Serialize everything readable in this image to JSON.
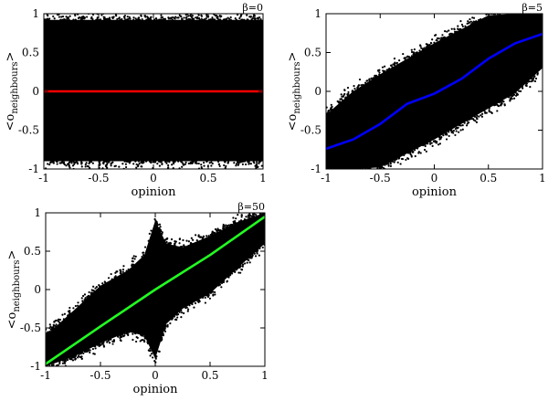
{
  "chart_data": [
    {
      "type": "scatter",
      "title": "",
      "annotation": "β=0",
      "xlabel": "opinion",
      "ylabel_main": "<o",
      "ylabel_sub": "neighbours",
      "ylabel_close": ">",
      "xlim": [
        -1,
        1
      ],
      "ylim": [
        -1,
        1
      ],
      "xticks": [
        -1,
        -0.5,
        0,
        0.5,
        1
      ],
      "yticks": [
        -1,
        -0.5,
        0,
        0.5,
        1
      ],
      "xtick_labels": [
        "-1",
        "-0.5",
        "0",
        "0.5",
        "1"
      ],
      "ytick_labels": [
        "-1",
        "-0.5",
        "0",
        "0.5",
        "1"
      ],
      "scatter_color": "#000000",
      "scatter_envelope": {
        "x": [
          -1,
          -0.5,
          0,
          0.5,
          1
        ],
        "y_low": [
          -0.9,
          -0.9,
          -0.9,
          -0.9,
          -0.9
        ],
        "y_high": [
          0.92,
          0.92,
          0.92,
          0.92,
          0.92
        ]
      },
      "series": [
        {
          "color": "#ff0000",
          "x": [
            -1,
            -0.5,
            0,
            0.5,
            1
          ],
          "y": [
            0,
            0,
            0,
            0,
            0
          ]
        }
      ]
    },
    {
      "type": "scatter",
      "title": "",
      "annotation": "β=5",
      "xlabel": "opinion",
      "ylabel_main": "<o",
      "ylabel_sub": "neighbours",
      "ylabel_close": ">",
      "xlim": [
        -1,
        1
      ],
      "ylim": [
        -1,
        1
      ],
      "xticks": [
        -1,
        -0.5,
        0,
        0.5,
        1
      ],
      "yticks": [
        -1,
        -0.5,
        0,
        0.5,
        1
      ],
      "xtick_labels": [
        "-1",
        "-0.5",
        "0",
        "0.5",
        "1"
      ],
      "ytick_labels": [
        "-1",
        "-0.5",
        "0",
        "0.5",
        "1"
      ],
      "scatter_color": "#000000",
      "scatter_envelope": {
        "x": [
          -1,
          -0.75,
          -0.5,
          -0.25,
          0,
          0.25,
          0.5,
          0.75,
          1
        ],
        "y_low": [
          -1,
          -1,
          -0.98,
          -0.8,
          -0.62,
          -0.42,
          -0.22,
          -0.02,
          0.3
        ],
        "y_high": [
          -0.3,
          0,
          0.22,
          0.42,
          0.62,
          0.8,
          0.98,
          1,
          1
        ]
      },
      "series": [
        {
          "color": "#0000ff",
          "x": [
            -1,
            -0.75,
            -0.5,
            -0.25,
            0,
            0.25,
            0.5,
            0.75,
            1
          ],
          "y": [
            -0.74,
            -0.62,
            -0.42,
            -0.16,
            -0.03,
            0.16,
            0.42,
            0.62,
            0.74
          ]
        }
      ]
    },
    {
      "type": "scatter",
      "title": "",
      "annotation": "β=50",
      "xlabel": "opinion",
      "ylabel_main": "<o",
      "ylabel_sub": "neighbours",
      "ylabel_close": ">",
      "xlim": [
        -1,
        1
      ],
      "ylim": [
        -1,
        1
      ],
      "xticks": [
        -1,
        -0.5,
        0,
        0.5,
        1
      ],
      "yticks": [
        -1,
        -0.5,
        0,
        0.5,
        1
      ],
      "xtick_labels": [
        "-1",
        "-0.5",
        "0",
        "0.5",
        "1"
      ],
      "ytick_labels": [
        "-1",
        "-0.5",
        "0",
        "0.5",
        "1"
      ],
      "scatter_color": "#000000",
      "scatter_envelope": {
        "x": [
          -1,
          -0.75,
          -0.5,
          -0.25,
          -0.1,
          0,
          0.1,
          0.25,
          0.5,
          0.75,
          1
        ],
        "y_low": [
          -1,
          -0.88,
          -0.7,
          -0.55,
          -0.6,
          -0.9,
          -0.45,
          -0.25,
          -0.05,
          0.28,
          0.6
        ],
        "y_high": [
          -0.6,
          -0.28,
          0.05,
          0.25,
          0.45,
          0.9,
          0.6,
          0.55,
          0.7,
          0.88,
          1
        ]
      },
      "series": [
        {
          "color": "#22ff22",
          "x": [
            -1,
            -0.5,
            0,
            0.5,
            1
          ],
          "y": [
            -0.97,
            -0.48,
            0.0,
            0.45,
            0.95
          ]
        }
      ]
    }
  ]
}
